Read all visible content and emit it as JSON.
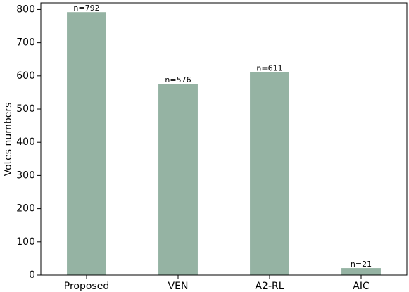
{
  "chart_data": {
    "type": "bar",
    "categories": [
      "Proposed",
      "VEN",
      "A2-RL",
      "AIC"
    ],
    "values": [
      792,
      576,
      611,
      21
    ],
    "data_labels": [
      "n=792",
      "n=576",
      "n=611",
      "n=21"
    ],
    "title": "",
    "xlabel": "",
    "ylabel": "Votes numbers",
    "ylim": [
      0,
      820
    ],
    "yticks": [
      0,
      100,
      200,
      300,
      400,
      500,
      600,
      700,
      800
    ],
    "grid": false,
    "bar_color": "#95b3a3",
    "legend": "none"
  }
}
